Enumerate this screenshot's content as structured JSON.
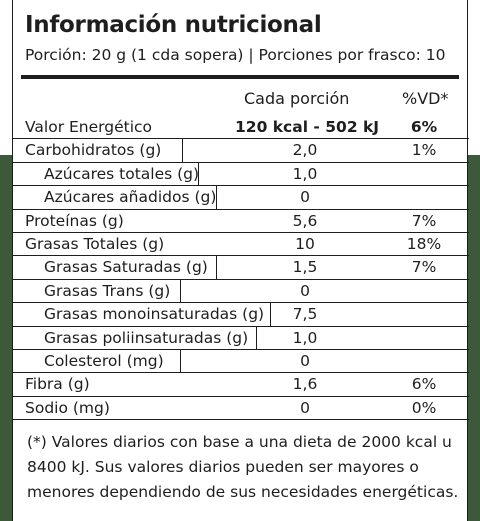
{
  "title": "Información nutricional",
  "serving": "Porción: 20 g (1 cda sopera) | Porciones por frasco: 10",
  "columns": {
    "per_portion": "Cada porción",
    "dv": "%VD*"
  },
  "rows": [
    {
      "name": "Valor Energético",
      "value": "120 kcal - 502 kJ",
      "dv": "6%"
    },
    {
      "name": "Carbohidratos (g)",
      "value": "2,0",
      "dv": "1%"
    },
    {
      "name": "Azúcares totales (g)",
      "value": "1,0",
      "dv": ""
    },
    {
      "name": "Azúcares añadidos (g)",
      "value": "0",
      "dv": ""
    },
    {
      "name": "Proteínas (g)",
      "value": "5,6",
      "dv": "7%"
    },
    {
      "name": "Grasas Totales (g)",
      "value": "10",
      "dv": "18%"
    },
    {
      "name": "Grasas Saturadas (g)",
      "value": "1,5",
      "dv": "7%"
    },
    {
      "name": "Grasas Trans (g)",
      "value": "0",
      "dv": ""
    },
    {
      "name": "Grasas monoinsaturadas (g)",
      "value": "7,5",
      "dv": ""
    },
    {
      "name": "Grasas poliinsaturadas (g)",
      "value": "1,0",
      "dv": ""
    },
    {
      "name": "Colesterol (mg)",
      "value": "0",
      "dv": ""
    },
    {
      "name": "Fibra (g)",
      "value": "1,6",
      "dv": "6%"
    },
    {
      "name": "Sodio (mg)",
      "value": "0",
      "dv": "0%"
    }
  ],
  "footnote": "(*) Valores diarios con base a una dieta de 2000 kcal u 8400 kJ. Sus valores diarios pueden ser mayores o menores dependiendo de sus necesidades energéticas.",
  "colors": {
    "background_green": "#3c5a3a",
    "text": "#1e1e1e",
    "label": "#ffffff"
  }
}
